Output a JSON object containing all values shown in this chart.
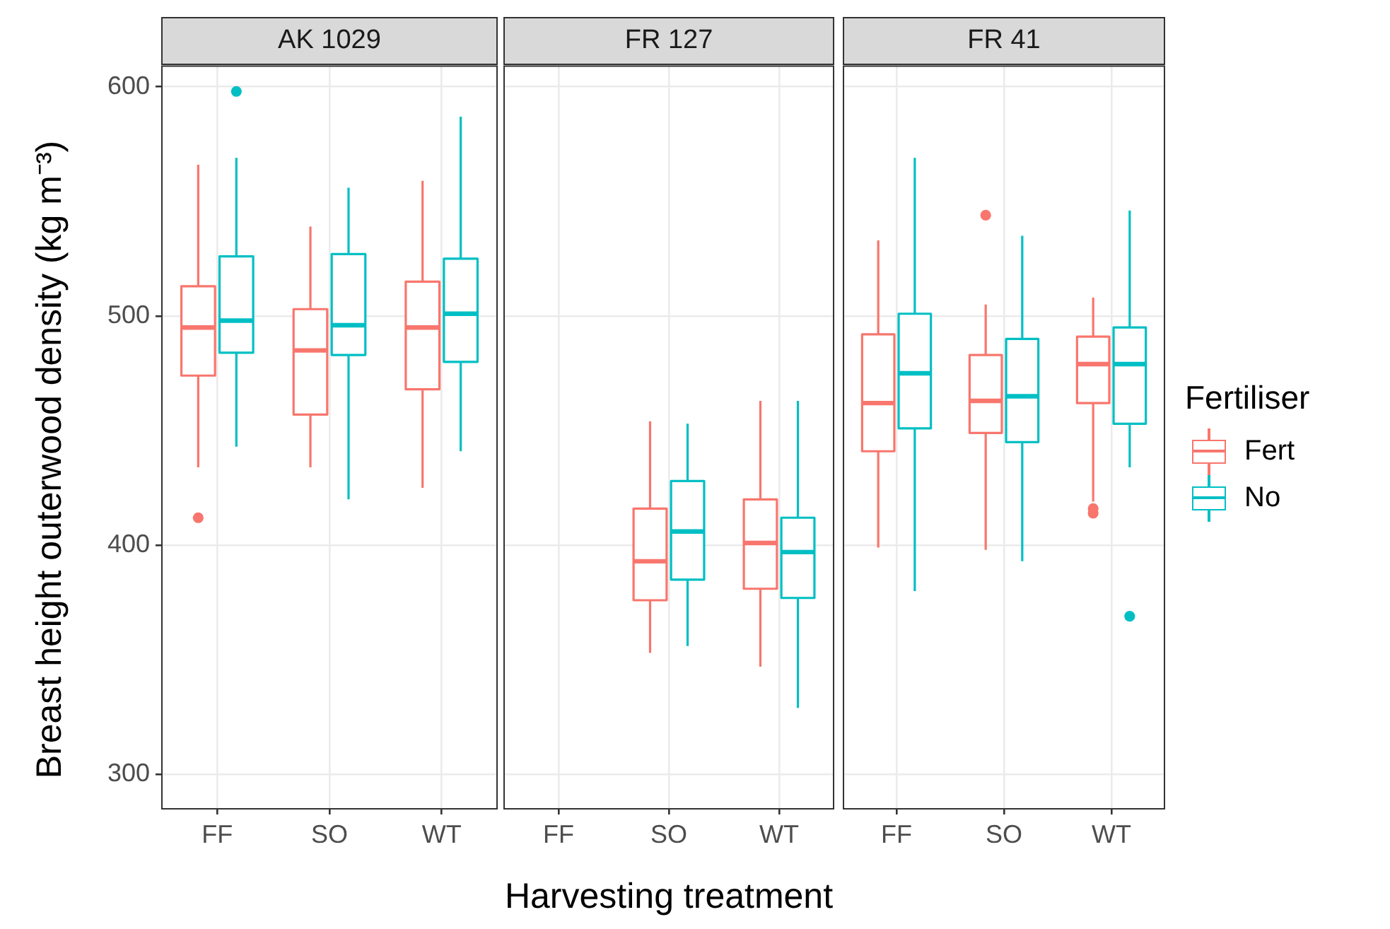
{
  "chart_data": [
    {
      "type": "box",
      "title": "AK 1029",
      "ylabel": "Breast height outerwood density (kg m⁻³)",
      "categories": [
        "FF",
        "SO",
        "WT"
      ],
      "ylim": [
        285,
        609
      ],
      "yticks": [
        300,
        400,
        500,
        600
      ],
      "grid": true,
      "legend": false,
      "series": [
        {
          "color": "#f8766d",
          "boxes": [
            {
              "low": 434,
              "q1": 474,
              "median": 495,
              "q3": 513,
              "high": 566,
              "outliers": [
                412
              ]
            },
            {
              "low": 434,
              "q1": 457,
              "median": 485,
              "q3": 503,
              "high": 539
            },
            {
              "low": 425,
              "q1": 468,
              "median": 495,
              "q3": 515,
              "high": 559
            }
          ]
        },
        {
          "color": "#00bfc4",
          "boxes": [
            {
              "low": 443,
              "q1": 484,
              "median": 498,
              "q3": 526,
              "high": 569,
              "outliers": [
                598
              ]
            },
            {
              "low": 420,
              "q1": 483,
              "median": 496,
              "q3": 527,
              "high": 556
            },
            {
              "low": 441,
              "q1": 480,
              "median": 501,
              "q3": 525,
              "high": 587
            }
          ]
        }
      ]
    },
    {
      "type": "box",
      "title": "FR 127",
      "xlabel": "Harvesting treatment",
      "categories": [
        "FF",
        "SO",
        "WT"
      ],
      "ylim": [
        285,
        609
      ],
      "yticks": [
        300,
        400,
        500,
        600
      ],
      "grid": true,
      "legend": false,
      "tick_labels": "x",
      "series": [
        {
          "color": "#f8766d",
          "boxes": [
            null,
            {
              "low": 353,
              "q1": 376,
              "median": 393,
              "q3": 416,
              "high": 454
            },
            {
              "low": 347,
              "q1": 381,
              "median": 401,
              "q3": 420,
              "high": 463
            }
          ]
        },
        {
          "color": "#00bfc4",
          "boxes": [
            null,
            {
              "low": 356,
              "q1": 385,
              "median": 406,
              "q3": 428,
              "high": 453
            },
            {
              "low": 329,
              "q1": 377,
              "median": 397,
              "q3": 412,
              "high": 463
            }
          ]
        }
      ]
    },
    {
      "type": "box",
      "title": "FR 41",
      "legend_title": "Fertiliser",
      "categories": [
        "FF",
        "SO",
        "WT"
      ],
      "ylim": [
        285,
        609
      ],
      "yticks": [
        300,
        400,
        500,
        600
      ],
      "grid": true,
      "legend": "right",
      "tick_labels": "x",
      "series": [
        {
          "name": "Fert",
          "color": "#f8766d",
          "boxes": [
            {
              "low": 399,
              "q1": 441,
              "median": 462,
              "q3": 492,
              "high": 533
            },
            {
              "low": 398,
              "q1": 449,
              "median": 463,
              "q3": 483,
              "high": 505,
              "outliers": [
                544
              ]
            },
            {
              "low": 419,
              "q1": 462,
              "median": 479,
              "q3": 491,
              "high": 508,
              "outliers": [
                416,
                414
              ]
            }
          ]
        },
        {
          "name": "No",
          "color": "#00bfc4",
          "boxes": [
            {
              "low": 380,
              "q1": 451,
              "median": 475,
              "q3": 501,
              "high": 569
            },
            {
              "low": 393,
              "q1": 445,
              "median": 465,
              "q3": 490,
              "high": 535
            },
            {
              "low": 434,
              "q1": 453,
              "median": 479,
              "q3": 495,
              "high": 546,
              "outliers": [
                369
              ]
            }
          ]
        }
      ]
    }
  ]
}
